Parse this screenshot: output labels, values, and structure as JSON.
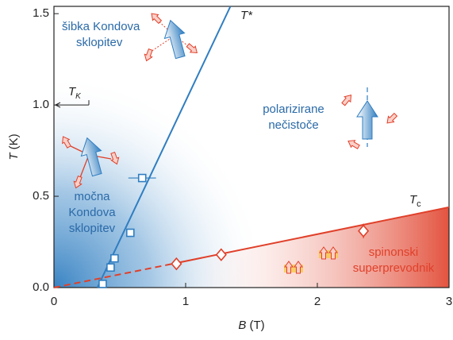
{
  "chart_data": {
    "type": "scatter",
    "xlabel_symbol": "B",
    "xlabel_unit": "(T)",
    "ylabel_symbol": "T",
    "ylabel_unit": "(K)",
    "xlim": [
      0,
      3
    ],
    "ylim": [
      0,
      1.54
    ],
    "xticks": [
      0,
      1,
      2,
      3
    ],
    "yticks": [
      {
        "value": 0,
        "label": "0.0"
      },
      0.5,
      {
        "value": 1,
        "label": "1.0"
      },
      1.5
    ],
    "series": [
      {
        "name": "T*",
        "color": "#2f7dc0",
        "marker": "square",
        "x": [
          0.37,
          0.43,
          0.46,
          0.58,
          0.67
        ],
        "values": [
          0.02,
          0.11,
          0.16,
          0.3,
          0.6
        ],
        "xerr": [
          null,
          null,
          null,
          null,
          0.105
        ],
        "line_x": [
          0.33,
          1.34
        ],
        "line_values": [
          0,
          1.54
        ]
      },
      {
        "name": "T",
        "subscript": "c",
        "color": "#e0402a",
        "marker": "diamond",
        "x": [
          0.93,
          1.27,
          2.35
        ],
        "values": [
          0.13,
          0.18,
          0.31
        ],
        "yerr": [
          null,
          null,
          0.04
        ],
        "line_x": [
          0.9,
          3
        ],
        "line_values": [
          0.13,
          0.44
        ],
        "dashed_x": [
          0,
          0.9
        ],
        "dashed_values": [
          0,
          0.13
        ]
      }
    ],
    "tk": {
      "symbol": "T",
      "subscript": "K",
      "value": 1
    },
    "regions": {
      "weak": [
        "šibka Kondova",
        "sklopitev"
      ],
      "polarized": [
        "polarizirane",
        "nečistoče"
      ],
      "strong": [
        "močna",
        "Kondova",
        "sklopitev"
      ],
      "spinon": [
        "spinonski",
        "superprevodnik"
      ]
    }
  }
}
